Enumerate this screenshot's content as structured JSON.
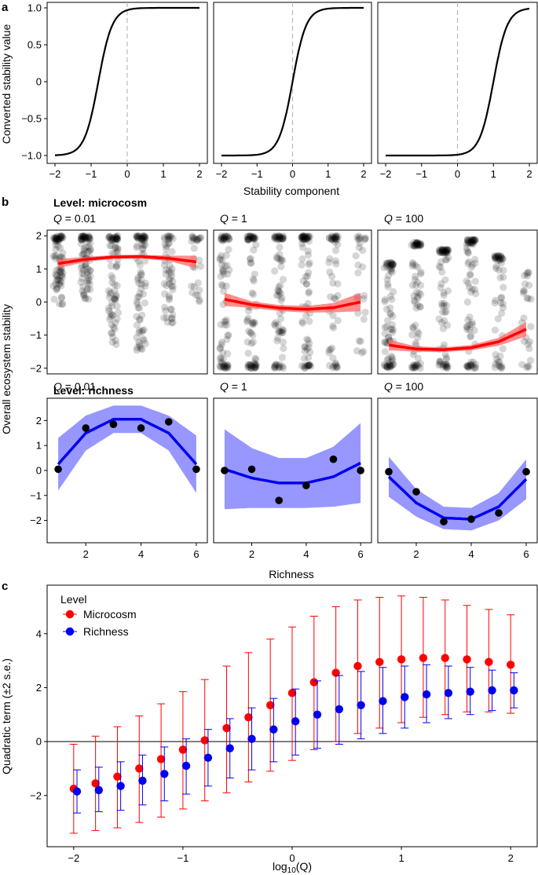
{
  "panel_letters": [
    "a",
    "b",
    "c"
  ],
  "chart_data": [
    {
      "type": "line",
      "panel": "a",
      "xlabel": "Stability component",
      "ylabel": "Converted stability value",
      "xlim": [
        -2,
        2
      ],
      "ylim": [
        -1,
        1
      ],
      "xticks": [
        "−2",
        "−1",
        "0",
        "1",
        "2"
      ],
      "yticks": [
        "−1.0",
        "−0.5",
        "0",
        "0.5",
        "1.0"
      ],
      "reference_line": {
        "x": 0,
        "style": "dashed",
        "color": "#bbbbbb"
      },
      "facets": [
        {
          "curve": "tanh",
          "center": -0.8,
          "steepness": 2.6
        },
        {
          "curve": "tanh",
          "center": 0.0,
          "steepness": 2.6
        },
        {
          "curve": "tanh",
          "center": 1.0,
          "steepness": 2.6
        }
      ]
    },
    {
      "type": "scatter",
      "panel": "b",
      "ylabel": "Overall ecosystem stability",
      "xlabel": "Richness",
      "xticks": [
        "2",
        "4",
        "6"
      ],
      "rows": [
        {
          "title": "Level: microcosm",
          "ylim": [
            -2.1,
            2.1
          ],
          "yticks": [
            "−2",
            "−1",
            "0",
            "1",
            "2"
          ],
          "point_color": "#000000",
          "fit_color": "#ff0000",
          "band_color": "#ff6a6a",
          "facets": [
            {
              "label_var": "Q",
              "label_value": " = 0.01",
              "columns": [
                {
                  "x": 1,
                  "min": -0.1,
                  "max": 2.0,
                  "density": "high"
                },
                {
                  "x": 2,
                  "min": 0.0,
                  "max": 2.0,
                  "density": "high"
                },
                {
                  "x": 3,
                  "min": -1.3,
                  "max": 2.0,
                  "density": "high"
                },
                {
                  "x": 4,
                  "min": -1.5,
                  "max": 2.0,
                  "density": "high"
                },
                {
                  "x": 5,
                  "min": -0.7,
                  "max": 2.0,
                  "density": "medium"
                },
                {
                  "x": 6,
                  "min": 0.0,
                  "max": 2.0,
                  "density": "low"
                }
              ],
              "fit": {
                "x": [
                  1,
                  2,
                  3,
                  4,
                  5,
                  6
                ],
                "y": [
                  1.16,
                  1.29,
                  1.36,
                  1.37,
                  1.32,
                  1.21
                ]
              },
              "band_halfwidth": [
                0.14,
                0.07,
                0.06,
                0.06,
                0.08,
                0.19
              ]
            },
            {
              "label_var": "Q",
              "label_value": " = 1",
              "columns": [
                {
                  "x": 1,
                  "min": -2.0,
                  "max": 2.0,
                  "density": "high"
                },
                {
                  "x": 2,
                  "min": -2.0,
                  "max": 2.0,
                  "density": "high"
                },
                {
                  "x": 3,
                  "min": -2.0,
                  "max": 2.0,
                  "density": "high"
                },
                {
                  "x": 4,
                  "min": -2.0,
                  "max": 2.0,
                  "density": "high"
                },
                {
                  "x": 5,
                  "min": -2.0,
                  "max": 2.0,
                  "density": "medium"
                },
                {
                  "x": 6,
                  "min": -1.8,
                  "max": 2.0,
                  "density": "low"
                }
              ],
              "fit": {
                "x": [
                  1,
                  2,
                  3,
                  4,
                  5,
                  6
                ],
                "y": [
                  0.08,
                  -0.08,
                  -0.18,
                  -0.22,
                  -0.17,
                  0.0
                ]
              },
              "band_halfwidth": [
                0.2,
                0.1,
                0.09,
                0.1,
                0.14,
                0.28
              ]
            },
            {
              "label_var": "Q",
              "label_value": " = 100",
              "columns": [
                {
                  "x": 1,
                  "min": -2.0,
                  "max": 1.2,
                  "density": "high"
                },
                {
                  "x": 2,
                  "min": -2.0,
                  "max": 1.8,
                  "density": "high"
                },
                {
                  "x": 3,
                  "min": -2.0,
                  "max": 1.6,
                  "density": "high"
                },
                {
                  "x": 4,
                  "min": -2.0,
                  "max": 1.9,
                  "density": "high"
                },
                {
                  "x": 5,
                  "min": -2.0,
                  "max": 1.4,
                  "density": "medium"
                },
                {
                  "x": 6,
                  "min": -2.0,
                  "max": 0.9,
                  "density": "low"
                }
              ],
              "fit": {
                "x": [
                  1,
                  2,
                  3,
                  4,
                  5,
                  6
                ],
                "y": [
                  -1.3,
                  -1.42,
                  -1.44,
                  -1.38,
                  -1.2,
                  -0.82
                ]
              },
              "band_halfwidth": [
                0.16,
                0.08,
                0.07,
                0.08,
                0.12,
                0.22
              ]
            }
          ]
        },
        {
          "title": "Level: richness",
          "ylim": [
            -2.8,
            2.8
          ],
          "yticks": [
            "−2",
            "−1",
            "0",
            "1",
            "2"
          ],
          "point_color": "#000000",
          "fit_color": "#0000ee",
          "band_color": "#8c8cff",
          "facets": [
            {
              "label_var": "Q",
              "label_value": " = 0.01",
              "points": {
                "x": [
                  1,
                  2,
                  3,
                  4,
                  5,
                  6
                ],
                "y": [
                  0.05,
                  1.7,
                  1.85,
                  1.7,
                  1.95,
                  0.05
                ]
              },
              "fit": {
                "x": [
                  1,
                  2,
                  3,
                  4,
                  5,
                  6
                ],
                "y": [
                  0.25,
                  1.5,
                  2.05,
                  2.05,
                  1.5,
                  0.25
                ]
              },
              "band_halfwidth": [
                1.05,
                0.7,
                0.55,
                0.55,
                0.7,
                1.15
              ]
            },
            {
              "label_var": "Q",
              "label_value": " = 1",
              "points": {
                "x": [
                  1,
                  2,
                  3,
                  4,
                  5,
                  6
                ],
                "y": [
                  0.0,
                  0.05,
                  -1.2,
                  -0.6,
                  0.45,
                  0.0
                ]
              },
              "fit": {
                "x": [
                  1,
                  2,
                  3,
                  4,
                  5,
                  6
                ],
                "y": [
                  0.05,
                  -0.3,
                  -0.5,
                  -0.5,
                  -0.25,
                  0.3
                ]
              },
              "band_halfwidth": [
                1.6,
                1.2,
                1.0,
                1.0,
                1.2,
                1.6
              ]
            },
            {
              "label_var": "Q",
              "label_value": " = 100",
              "points": {
                "x": [
                  1,
                  2,
                  3,
                  4,
                  5,
                  6
                ],
                "y": [
                  -0.05,
                  -0.85,
                  -2.05,
                  -1.95,
                  -1.7,
                  -0.05
                ]
              },
              "fit": {
                "x": [
                  1,
                  2,
                  3,
                  4,
                  5,
                  6
                ],
                "y": [
                  -0.25,
                  -1.3,
                  -1.9,
                  -1.95,
                  -1.45,
                  -0.35
                ]
              },
              "band_halfwidth": [
                0.8,
                0.55,
                0.45,
                0.45,
                0.55,
                0.8
              ]
            }
          ]
        }
      ]
    },
    {
      "type": "scatter",
      "panel": "c",
      "xlabel_base": "log",
      "xlabel_sub": "10",
      "xlabel_rest": "(Q)",
      "ylabel": "Quadratic term (±2 s.e.)",
      "xlim": [
        -2.2,
        2.2
      ],
      "ylim": [
        -3.9,
        5.8
      ],
      "xticks": [
        "−2",
        "−1",
        "0",
        "1",
        "2"
      ],
      "yticks": [
        "−2",
        "0",
        "2",
        "4"
      ],
      "reference_line": {
        "y": 0,
        "color": "#000000"
      },
      "legend": {
        "title": "Level",
        "placement": "top-left"
      },
      "series": [
        {
          "name": "Microcosm",
          "color": "#ff0000",
          "x": [
            -2.0,
            -1.8,
            -1.6,
            -1.4,
            -1.2,
            -1.0,
            -0.8,
            -0.6,
            -0.4,
            -0.2,
            0.0,
            0.2,
            0.4,
            0.6,
            0.8,
            1.0,
            1.2,
            1.4,
            1.6,
            1.8,
            2.0
          ],
          "y": [
            -1.75,
            -1.55,
            -1.3,
            -1.0,
            -0.65,
            -0.3,
            0.05,
            0.5,
            0.9,
            1.35,
            1.8,
            2.2,
            2.55,
            2.8,
            2.95,
            3.05,
            3.1,
            3.1,
            3.05,
            2.95,
            2.85
          ],
          "lower": [
            -3.4,
            -3.3,
            -3.2,
            -3.0,
            -2.8,
            -2.5,
            -2.2,
            -1.9,
            -1.5,
            -1.1,
            -0.7,
            -0.3,
            0.0,
            0.3,
            0.5,
            0.7,
            0.9,
            1.0,
            1.1,
            1.1,
            1.05
          ],
          "upper": [
            -0.1,
            0.2,
            0.55,
            0.95,
            1.4,
            1.85,
            2.3,
            2.8,
            3.3,
            3.8,
            4.25,
            4.65,
            5.0,
            5.25,
            5.35,
            5.4,
            5.35,
            5.25,
            5.05,
            4.9,
            4.7
          ]
        },
        {
          "name": "Richness",
          "color": "#0000ee",
          "x": [
            -1.97,
            -1.77,
            -1.57,
            -1.37,
            -1.17,
            -0.97,
            -0.77,
            -0.57,
            -0.37,
            -0.17,
            0.03,
            0.23,
            0.43,
            0.63,
            0.83,
            1.03,
            1.23,
            1.43,
            1.63,
            1.83,
            2.03
          ],
          "y": [
            -1.85,
            -1.8,
            -1.65,
            -1.45,
            -1.2,
            -0.9,
            -0.6,
            -0.25,
            0.1,
            0.45,
            0.75,
            1.0,
            1.2,
            1.35,
            1.5,
            1.65,
            1.75,
            1.8,
            1.85,
            1.9,
            1.9
          ],
          "lower": [
            -2.65,
            -2.6,
            -2.55,
            -2.35,
            -2.2,
            -1.95,
            -1.65,
            -1.35,
            -1.05,
            -0.75,
            -0.5,
            -0.25,
            -0.1,
            0.1,
            0.3,
            0.5,
            0.7,
            0.85,
            1.0,
            1.15,
            1.25
          ],
          "upper": [
            -1.05,
            -0.95,
            -0.75,
            -0.5,
            -0.2,
            0.1,
            0.45,
            0.85,
            1.25,
            1.6,
            1.95,
            2.25,
            2.45,
            2.6,
            2.75,
            2.8,
            2.85,
            2.8,
            2.75,
            2.65,
            2.55
          ]
        }
      ]
    }
  ]
}
